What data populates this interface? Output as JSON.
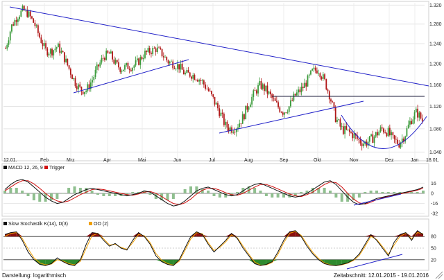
{
  "chart_data": [
    {
      "type": "candlestick",
      "name_hint": "price-panel",
      "y_ticks": [
        1.04,
        1.08,
        1.12,
        1.16,
        1.2,
        1.24,
        1.28,
        1.32
      ],
      "y_tick_labels": [
        "1.040",
        "1.080",
        "1.120",
        "1.160",
        "1.200",
        "1.240",
        "1.280",
        "1.320"
      ],
      "ylim": [
        1.03,
        1.325
      ],
      "x_labels": [
        "12.01.",
        "Feb",
        "Mrz",
        "Apr",
        "Mai",
        "Jun",
        "Jul",
        "Aug",
        "Sep",
        "Okt",
        "Nov",
        "Dez",
        "Jan",
        "18.01."
      ],
      "scale": "logarithmic",
      "grid": true,
      "colors": {
        "up": "#3a9a3a",
        "down": "#b01818",
        "trend": "#2020c8",
        "flat": "#1a1a3a"
      },
      "close_path": [
        1.23,
        1.275,
        1.295,
        1.31,
        1.3,
        1.28,
        1.25,
        1.225,
        1.225,
        1.235,
        1.215,
        1.19,
        1.165,
        1.15,
        1.15,
        1.17,
        1.195,
        1.215,
        1.22,
        1.2,
        1.19,
        1.195,
        1.195,
        1.205,
        1.22,
        1.225,
        1.23,
        1.22,
        1.205,
        1.2,
        1.195,
        1.18,
        1.18,
        1.175,
        1.165,
        1.15,
        1.13,
        1.11,
        1.085,
        1.08,
        1.085,
        1.1,
        1.125,
        1.145,
        1.16,
        1.15,
        1.135,
        1.12,
        1.11,
        1.12,
        1.14,
        1.15,
        1.165,
        1.185,
        1.19,
        1.17,
        1.14,
        1.1,
        1.08,
        1.075,
        1.07,
        1.06,
        1.055,
        1.06,
        1.07,
        1.08,
        1.075,
        1.06,
        1.055,
        1.07,
        1.095,
        1.11,
        1.095
      ]
    },
    {
      "type": "line",
      "name_hint": "macd-panel",
      "title": "MACD 12, 26, 9",
      "legend": [
        {
          "name": "MACD 12, 26, 9",
          "color": "#111111"
        },
        {
          "name": "Trigger",
          "color": "#d01010"
        }
      ],
      "y_ticks": [
        16,
        0,
        -16,
        -32
      ],
      "y_tick_labels": [
        "16",
        "0",
        "-16",
        "-32"
      ],
      "ylim": [
        -34,
        34
      ],
      "series": [
        {
          "name": "MACD 12, 26, 9",
          "color": "#111111",
          "values": [
            6,
            14,
            20,
            22,
            18,
            10,
            2,
            -6,
            -12,
            -16,
            -14,
            -8,
            -2,
            2,
            6,
            8,
            6,
            4,
            2,
            0,
            -2,
            -4,
            -2,
            0,
            4,
            2,
            -4,
            -10,
            -16,
            -20,
            -18,
            -12,
            -4,
            4,
            8,
            10,
            6,
            2,
            -2,
            -4,
            -2,
            4,
            10,
            14,
            16,
            12,
            8,
            4,
            0,
            -4,
            -6,
            -4,
            0,
            6,
            12,
            18,
            20,
            14,
            4,
            -6,
            -14,
            -18,
            -16,
            -12,
            -8,
            -6,
            -4,
            -2,
            0,
            2,
            4,
            6,
            10
          ]
        },
        {
          "name": "Trigger",
          "color": "#d01010",
          "values": [
            4,
            10,
            16,
            20,
            20,
            15,
            8,
            0,
            -7,
            -12,
            -14,
            -12,
            -7,
            -2,
            2,
            6,
            7,
            6,
            4,
            2,
            0,
            -2,
            -3,
            -1,
            2,
            3,
            0,
            -5,
            -11,
            -16,
            -18,
            -15,
            -9,
            -1,
            5,
            8,
            8,
            5,
            1,
            -2,
            -3,
            0,
            5,
            10,
            14,
            14,
            11,
            7,
            3,
            -1,
            -4,
            -5,
            -2,
            2,
            8,
            14,
            18,
            17,
            10,
            0,
            -9,
            -15,
            -17,
            -14,
            -10,
            -7,
            -5,
            -3,
            -1,
            1,
            3,
            5,
            8
          ]
        }
      ]
    },
    {
      "type": "line",
      "name_hint": "stochastic-panel",
      "title": "Slow Stochastik K(14), D(3)",
      "legend": [
        {
          "name": "Slow Stochastik K(14), D(3)",
          "color": "#111111"
        },
        {
          "name": "OO (2)",
          "color": "#f0a000"
        }
      ],
      "y_ticks": [
        80,
        50,
        20
      ],
      "y_tick_labels": [
        "80",
        "50",
        "20"
      ],
      "ylim": [
        0,
        100
      ],
      "overbought": 80,
      "oversold": 20,
      "series": [
        {
          "name": "Slow Stochastik K(14), D(3)",
          "color": "#111111",
          "values": [
            85,
            90,
            92,
            70,
            40,
            20,
            8,
            5,
            10,
            25,
            15,
            8,
            5,
            20,
            60,
            90,
            88,
            70,
            55,
            62,
            50,
            45,
            70,
            90,
            80,
            60,
            30,
            15,
            8,
            5,
            20,
            50,
            80,
            92,
            85,
            60,
            40,
            55,
            70,
            88,
            75,
            50,
            30,
            10,
            5,
            8,
            15,
            40,
            70,
            92,
            95,
            80,
            55,
            35,
            20,
            10,
            6,
            5,
            8,
            12,
            20,
            35,
            60,
            85,
            70,
            50,
            30,
            65,
            85,
            90,
            70,
            95,
            85
          ]
        },
        {
          "name": "OO (2)",
          "color": "#f0a000",
          "values": [
            80,
            88,
            90,
            75,
            48,
            25,
            12,
            7,
            9,
            20,
            17,
            10,
            7,
            16,
            50,
            82,
            88,
            74,
            58,
            60,
            52,
            47,
            64,
            85,
            82,
            64,
            36,
            19,
            10,
            6,
            16,
            44,
            74,
            90,
            87,
            64,
            44,
            52,
            66,
            84,
            77,
            55,
            34,
            14,
            6,
            7,
            13,
            34,
            64,
            88,
            93,
            83,
            60,
            39,
            23,
            12,
            7,
            5,
            7,
            11,
            18,
            31,
            55,
            80,
            72,
            54,
            34,
            58,
            80,
            88,
            74,
            90,
            87
          ]
        }
      ]
    }
  ],
  "footer": {
    "scale_label": "Darstellung: logarithmisch",
    "period_label": "Zeitabschnitt: 12.01.2015 - 19.01.2016"
  },
  "icons": {
    "resize": "resize-grip-icon"
  }
}
